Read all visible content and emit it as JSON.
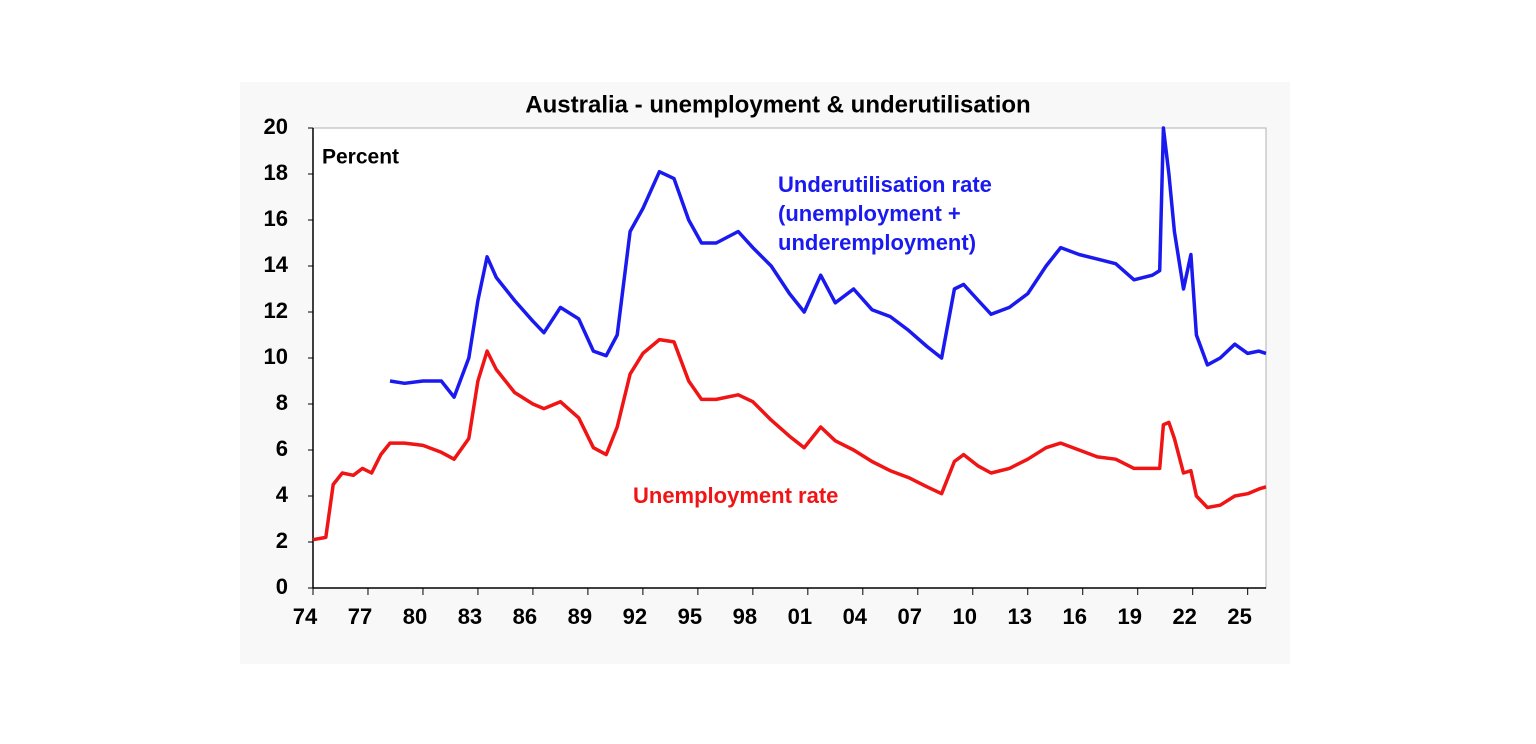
{
  "chart_data": {
    "type": "line",
    "title": "Australia - unemployment & underutilisation",
    "y_label": "Percent",
    "x": [
      1974.0,
      1974.7,
      1975.1,
      1975.6,
      1976.2,
      1976.7,
      1977.2,
      1977.7,
      1978.2,
      1979.0,
      1980.0,
      1981.0,
      1981.7,
      1982.5,
      1983.0,
      1983.5,
      1984.0,
      1985.0,
      1986.0,
      1986.6,
      1987.5,
      1988.5,
      1989.3,
      1990.0,
      1990.6,
      1991.3,
      1992.0,
      1992.9,
      1993.7,
      1994.5,
      1995.2,
      1996.0,
      1997.2,
      1998.0,
      1999.0,
      2000.0,
      2000.8,
      2001.7,
      2002.5,
      2003.5,
      2004.5,
      2005.5,
      2006.5,
      2007.5,
      2008.3,
      2009.0,
      2009.5,
      2010.3,
      2011.0,
      2012.0,
      2013.0,
      2014.0,
      2014.8,
      2015.8,
      2016.8,
      2017.8,
      2018.8,
      2019.8,
      2020.2,
      2020.4,
      2020.7,
      2021.0,
      2021.5,
      2021.9,
      2022.2,
      2022.8,
      2023.5,
      2024.3,
      2025.0,
      2025.6,
      2026.0
    ],
    "series": [
      {
        "name": [
          "Underutilisation rate",
          "(unemployment +",
          "underemployment)"
        ],
        "color": "#1a1af0",
        "values": [
          null,
          null,
          null,
          null,
          null,
          null,
          null,
          null,
          9.0,
          8.9,
          9.0,
          9.0,
          8.3,
          10.0,
          12.5,
          14.4,
          13.5,
          12.5,
          11.6,
          11.1,
          12.2,
          11.7,
          10.3,
          10.1,
          11.0,
          15.5,
          16.5,
          18.1,
          17.8,
          16.0,
          15.0,
          15.0,
          15.5,
          14.8,
          14.0,
          12.8,
          12.0,
          13.6,
          12.4,
          13.0,
          12.1,
          11.8,
          11.2,
          10.5,
          10.0,
          13.0,
          13.2,
          12.5,
          11.9,
          12.2,
          12.8,
          14.0,
          14.8,
          14.5,
          14.3,
          14.1,
          13.4,
          13.6,
          13.8,
          20.0,
          18.0,
          15.5,
          13.0,
          14.5,
          11.0,
          9.7,
          10.0,
          10.6,
          10.2,
          10.3,
          10.2
        ]
      },
      {
        "name": [
          "Unemployment rate"
        ],
        "color": "#f01414",
        "values": [
          2.1,
          2.2,
          4.5,
          5.0,
          4.9,
          5.2,
          5.0,
          5.8,
          6.3,
          6.3,
          6.2,
          5.9,
          5.6,
          6.5,
          9.0,
          10.3,
          9.5,
          8.5,
          8.0,
          7.8,
          8.1,
          7.4,
          6.1,
          5.8,
          7.0,
          9.3,
          10.2,
          10.8,
          10.7,
          9.0,
          8.2,
          8.2,
          8.4,
          8.1,
          7.3,
          6.6,
          6.1,
          7.0,
          6.4,
          6.0,
          5.5,
          5.1,
          4.8,
          4.4,
          4.1,
          5.5,
          5.8,
          5.3,
          5.0,
          5.2,
          5.6,
          6.1,
          6.3,
          6.0,
          5.7,
          5.6,
          5.2,
          5.2,
          5.2,
          7.1,
          7.2,
          6.5,
          5.0,
          5.1,
          4.0,
          3.5,
          3.6,
          4.0,
          4.1,
          4.3,
          4.4
        ]
      }
    ],
    "xlim": [
      1974,
      2026
    ],
    "xticks": [
      {
        "value": 1974,
        "label": "74"
      },
      {
        "value": 1977,
        "label": "77"
      },
      {
        "value": 1980,
        "label": "80"
      },
      {
        "value": 1983,
        "label": "83"
      },
      {
        "value": 1986,
        "label": "86"
      },
      {
        "value": 1989,
        "label": "89"
      },
      {
        "value": 1992,
        "label": "92"
      },
      {
        "value": 1995,
        "label": "95"
      },
      {
        "value": 1998,
        "label": "98"
      },
      {
        "value": 2001,
        "label": "01"
      },
      {
        "value": 2004,
        "label": "04"
      },
      {
        "value": 2007,
        "label": "07"
      },
      {
        "value": 2010,
        "label": "10"
      },
      {
        "value": 2013,
        "label": "13"
      },
      {
        "value": 2016,
        "label": "16"
      },
      {
        "value": 2019,
        "label": "19"
      },
      {
        "value": 2022,
        "label": "22"
      },
      {
        "value": 2025,
        "label": "25"
      }
    ],
    "ylim": [
      0,
      20
    ],
    "yticks": [
      0,
      2,
      4,
      6,
      8,
      10,
      12,
      14,
      16,
      18,
      20
    ],
    "grid": false
  }
}
